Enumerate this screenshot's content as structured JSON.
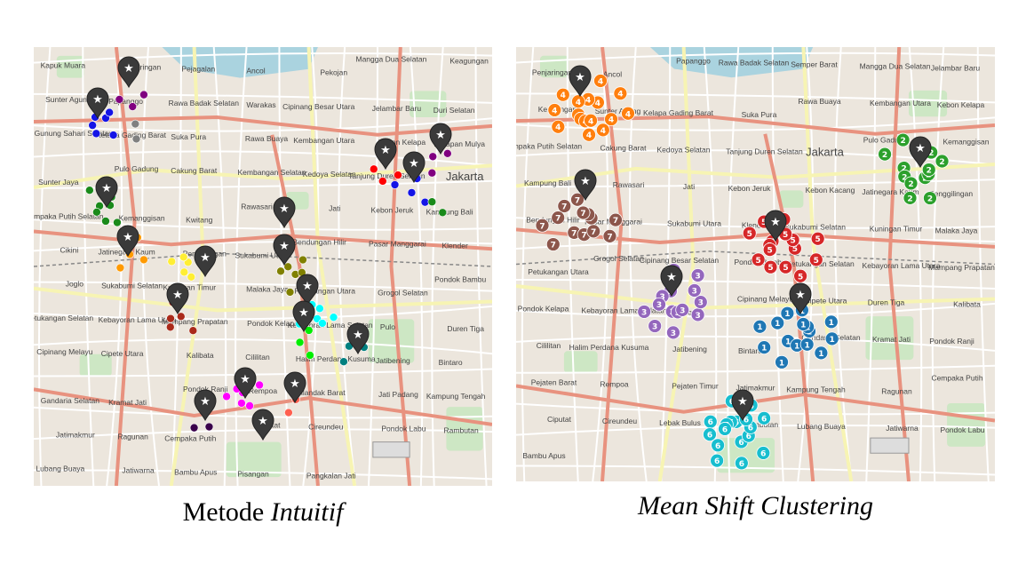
{
  "panels": [
    {
      "id": "left",
      "caption_plain": "Metode ",
      "caption_italic": "Intuitif",
      "place_labels": [
        "Kapuk Muara",
        "Penjaringan",
        "Pejagalan",
        "Ancol",
        "Pekojan",
        "Mangga Dua Selatan",
        "Keagungan",
        "Sunter Agung",
        "Papanggo",
        "Rawa Badak Selatan",
        "Warakas",
        "Cipinang Besar Utara",
        "Jelambar Baru",
        "Duri Selatan",
        "Gunung Sahari Selatan",
        "Kelapa Gading Barat",
        "Suka Pura",
        "Rawa Buaya",
        "Kembangan Utara",
        "Kebon Kelapa",
        "Harapan Mulya",
        "Sunter Jaya",
        "Pulo Gadung",
        "Cakung Barat",
        "Kembangan Selatan",
        "Kedoya Selatan",
        "Tanjung Duren Selatan",
        "Jakarta",
        "Cempaka Putih Selatan",
        "Kemanggisan",
        "Kwitang",
        "Rawasari",
        "Jati",
        "Kebon Jeruk",
        "Kampung Bali",
        "Cikini",
        "Jatinegara Kaum",
        "Penggilingan",
        "Sukabumi Utara",
        "Bendungan Hilir",
        "Pasar Manggarai",
        "Klender",
        "Joglo",
        "Sukabumi Selatan",
        "Kuningan Timur",
        "Malaka Jaya",
        "Petukangan Utara",
        "Grogol Selatan",
        "Pondok Bambu",
        "Petukangan Selatan",
        "Kebayoran Lama Utara",
        "Mampang Prapatan",
        "Pondok Kelapa",
        "Kebayoran Lama Selatan",
        "Pulo",
        "Duren Tiga",
        "Cipinang Melayu",
        "Cipete Utara",
        "Kalibata",
        "Cililitan",
        "Halim Perdana Kusuma",
        "Jatibening",
        "Bintaro",
        "Gandaria Selatan",
        "Kramat Jati",
        "Pondok Ranji",
        "Rempoa",
        "Cilandak Barat",
        "Jati Padang",
        "Kampung Tengah",
        "Jatimakmur",
        "Ragunan",
        "Cempaka Putih",
        "Ciputat",
        "Cireundeu",
        "Pondok Labu",
        "Rambutan",
        "Lubang Buaya",
        "Jatiwarna",
        "Bambu Apus",
        "Pisangan",
        "Pangkalan Jati"
      ],
      "clusters": [
        {
          "color": "#1414e6",
          "points": 8
        },
        {
          "color": "#800080",
          "points": 3
        },
        {
          "color": "#808080",
          "points": 2
        },
        {
          "color": "#1a8a1a",
          "points": 8
        },
        {
          "color": "#ff9a00",
          "points": 4
        },
        {
          "color": "#ffee33",
          "points": 6
        },
        {
          "color": "#aa2a1a",
          "points": 5
        },
        {
          "color": "#808000",
          "points": 6
        },
        {
          "color": "#00ffff",
          "points": 6
        },
        {
          "color": "#00ee00",
          "points": 3
        },
        {
          "color": "#008080",
          "points": 3
        },
        {
          "color": "#ff00ff",
          "points": 6
        },
        {
          "color": "#ff6050",
          "points": 2
        },
        {
          "color": "#3a004a",
          "points": 2
        },
        {
          "color": "#ff0000",
          "points": 3
        },
        {
          "color": "#1414e6",
          "points": 4
        },
        {
          "color": "#800080",
          "points": 3
        },
        {
          "color": "#1a8a1a",
          "points": 2
        }
      ],
      "centroid_count": 18
    },
    {
      "id": "right",
      "caption": "Mean Shift Clustering",
      "place_labels": [
        "Penjaringan",
        "Ancol",
        "Papanggo",
        "Rawa Badak Selatan",
        "Semper Barat",
        "Mangga Dua Selatan",
        "Jelambar Baru",
        "Keagungan",
        "Sunter Agung",
        "Kelapa Gading Barat",
        "Suka Pura",
        "Rawa Buaya",
        "Kembangan Utara",
        "Kebon Kelapa",
        "Cempaka Putih Selatan",
        "Cakung Barat",
        "Kedoya Selatan",
        "Tanjung Duren Selatan",
        "Jakarta",
        "Pulo Gadung",
        "Kemanggisan",
        "Kampung Bali",
        "Rawasari",
        "Jati",
        "Kebon Jeruk",
        "Kebon Kacang",
        "Jatinegara Kaum",
        "Penggilingan",
        "Bendungan Hilir",
        "Pasar Manggarai",
        "Sukabumi Utara",
        "Klender",
        "Sukabumi Selatan",
        "Kuningan Timur",
        "Malaka Jaya",
        "Petukangan Utara",
        "Grogol Selatan",
        "Cipinang Besar Selatan",
        "Pondok Bambu",
        "Petukangan Selatan",
        "Kebayoran Lama Utara",
        "Mampang Prapatan",
        "Pondok Kelapa",
        "Kebayoran Lama Selatan",
        "Pulo",
        "Cipinang Melayu",
        "Cipete Utara",
        "Duren Tiga",
        "Kalibata",
        "Cililitan",
        "Halim Perdana Kusuma",
        "Jatibening",
        "Bintaro",
        "Gandaria Selatan",
        "Kramat Jati",
        "Pondok Ranji",
        "Pejaten Barat",
        "Rempoa",
        "Pejaten Timur",
        "Jatimakmur",
        "Kampung Tengah",
        "Ragunan",
        "Cempaka Putih",
        "Ciputat",
        "Cireundeu",
        "Lebak Bulus",
        "Rambutan",
        "Lubang Buaya",
        "Jatiwarna",
        "Pondok Labu",
        "Bambu Apus"
      ],
      "clusters": [
        {
          "id": "1",
          "color": "#1f77b4",
          "points": 15
        },
        {
          "id": "2",
          "color": "#2ca02c",
          "points": 13
        },
        {
          "id": "3",
          "color": "#9467bd",
          "points": 14
        },
        {
          "id": "4",
          "color": "#ff7f0e",
          "points": 16
        },
        {
          "id": "5",
          "color": "#d62728",
          "points": 15
        },
        {
          "id": "6",
          "color": "#17becf",
          "points": 17
        },
        {
          "id": "7",
          "color": "#8c564b",
          "points": 13
        }
      ],
      "centroid_count": 7
    }
  ]
}
